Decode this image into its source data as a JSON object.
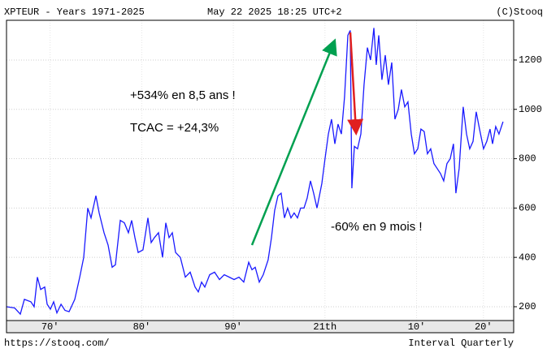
{
  "chart_data": {
    "type": "line",
    "title": "XPTEUR - Years 1971-2025",
    "subtitle": "May 22 2025 18:25 UTC+2",
    "credit": "(C)Stooq",
    "source": "https://stooq.com/",
    "interval": "Interval Quarterly",
    "color": "#1a1aff",
    "grid": true,
    "annotations": [
      {
        "text": "+534% en 8,5 ans !",
        "color": "#00a050"
      },
      {
        "text": "TCAC = +24,3%",
        "color": "#00a050"
      },
      {
        "text": "-60% en 9 mois !",
        "color": "#e02020"
      }
    ],
    "x": [
      1970.24,
      1971.13,
      1971.75,
      1972.19,
      1972.9,
      1973.26,
      1973.61,
      1973.97,
      1974.41,
      1974.68,
      1975.03,
      1975.39,
      1975.74,
      1976.19,
      1976.63,
      1977.07,
      1977.69,
      1978.23,
      1978.67,
      1979.11,
      1979.47,
      1980.0,
      1980.35,
      1980.89,
      1981.33,
      1981.77,
      1982.13,
      1982.66,
      1983.1,
      1983.55,
      1983.9,
      1984.26,
      1984.61,
      1985.14,
      1985.68,
      1986.03,
      1986.39,
      1986.83,
      1987.27,
      1987.63,
      1987.98,
      1988.34,
      1988.69,
      1989.22,
      1989.76,
      1990.29,
      1990.82,
      1991.18,
      1991.53,
      1991.89,
      1992.42,
      1992.95,
      1993.48,
      1994.01,
      1994.55,
      1995.08,
      1995.61,
      1996.14,
      1996.68,
      1997.03,
      1997.39,
      1997.83,
      1998.27,
      1998.8,
      1999.16,
      1999.51,
      1999.87,
      2000.22,
      2000.58,
      2000.93,
      2001.29,
      2001.64,
      2002.0,
      2002.35,
      2002.71,
      2003.06,
      2003.42,
      2003.77,
      2004.13,
      2004.66,
      2005.01,
      2005.37,
      2005.72,
      2006.08,
      2006.43,
      2006.79,
      2007.14,
      2007.5,
      2007.76,
      2007.94,
      2008.21,
      2008.56,
      2008.92,
      2009.27,
      2009.63,
      2009.98,
      2010.34,
      2010.6,
      2010.87,
      2011.22,
      2011.58,
      2011.93,
      2012.29,
      2012.64,
      2013.0,
      2013.35,
      2013.71,
      2014.06,
      2014.42,
      2014.77,
      2015.13,
      2015.48,
      2015.83,
      2016.19,
      2016.54,
      2016.9,
      2017.25,
      2017.61,
      2017.96,
      2018.32,
      2018.67,
      2019.03,
      2019.29,
      2019.65,
      2020.09,
      2020.45,
      2020.8,
      2021.16,
      2021.51,
      2021.87,
      2022.31,
      2022.66,
      2023.02,
      2023.29,
      2023.64,
      2023.99,
      2024.44
    ],
    "values": [
      200,
      195,
      170,
      230,
      220,
      200,
      320,
      270,
      280,
      210,
      190,
      220,
      175,
      210,
      185,
      180,
      230,
      320,
      400,
      600,
      560,
      650,
      580,
      500,
      450,
      360,
      370,
      550,
      540,
      500,
      550,
      480,
      420,
      430,
      560,
      460,
      480,
      500,
      400,
      540,
      480,
      500,
      420,
      400,
      320,
      340,
      280,
      260,
      300,
      280,
      330,
      340,
      310,
      330,
      320,
      310,
      320,
      300,
      380,
      350,
      360,
      300,
      330,
      390,
      480,
      590,
      650,
      660,
      560,
      600,
      560,
      580,
      560,
      600,
      600,
      640,
      710,
      660,
      600,
      700,
      800,
      900,
      960,
      860,
      940,
      900,
      1050,
      1300,
      1320,
      680,
      850,
      840,
      900,
      1100,
      1250,
      1200,
      1330,
      1180,
      1300,
      1120,
      1220,
      1100,
      1190,
      960,
      1000,
      1080,
      1010,
      1030,
      900,
      820,
      840,
      920,
      910,
      820,
      840,
      780,
      760,
      740,
      710,
      780,
      800,
      860,
      660,
      760,
      1010,
      900,
      840,
      870,
      990,
      920,
      840,
      870,
      920,
      860,
      930,
      900,
      950
    ],
    "xlim": [
      1970.24,
      2025.6
    ],
    "xticks": [
      {
        "value": 1975,
        "label": "70'"
      },
      {
        "value": 1985,
        "label": "80'"
      },
      {
        "value": 1995,
        "label": "90'"
      },
      {
        "value": 2005,
        "label": "21th"
      },
      {
        "value": 2015,
        "label": "10'"
      },
      {
        "value": 2022.3,
        "label": "20'"
      }
    ],
    "ylim": [
      144,
      1361
    ],
    "yticks": [
      200,
      400,
      600,
      800,
      1000,
      1200
    ]
  }
}
